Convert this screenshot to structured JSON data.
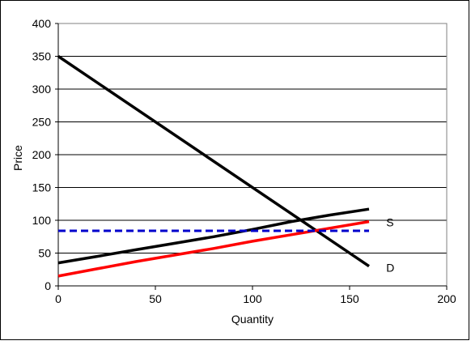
{
  "chart_data": {
    "type": "line",
    "title": "",
    "xlabel": "Quantity",
    "ylabel": "Price",
    "xlim": [
      0,
      200
    ],
    "ylim": [
      0,
      400
    ],
    "xticks": [
      "0",
      "50",
      "100",
      "150",
      "200"
    ],
    "yticks": [
      "0",
      "50",
      "100",
      "150",
      "200",
      "250",
      "300",
      "350",
      "400"
    ],
    "grid": "horizontal",
    "legend": "none",
    "series": [
      {
        "name": "D",
        "color": "#000000",
        "style": "solid",
        "x": [
          0,
          160
        ],
        "y": [
          350,
          30
        ]
      },
      {
        "name": "S",
        "color": "#000000",
        "style": "solid",
        "x": [
          0,
          20,
          40,
          60,
          80,
          100,
          120,
          140,
          160
        ],
        "y": [
          35,
          45,
          55,
          65,
          75,
          86,
          98,
          108,
          117
        ]
      },
      {
        "name": "",
        "color": "#ff0000",
        "style": "solid",
        "x": [
          0,
          20,
          40,
          60,
          80,
          100,
          120,
          140,
          160
        ],
        "y": [
          15,
          26,
          37,
          47,
          57,
          68,
          78,
          88,
          98
        ]
      },
      {
        "name": "",
        "color": "#0000cc",
        "style": "dashed",
        "x": [
          0,
          160
        ],
        "y": [
          84,
          84
        ]
      }
    ],
    "annotations": [
      {
        "text": "S",
        "x": 168,
        "y": 97
      },
      {
        "text": "D",
        "x": 168,
        "y": 28
      }
    ]
  }
}
